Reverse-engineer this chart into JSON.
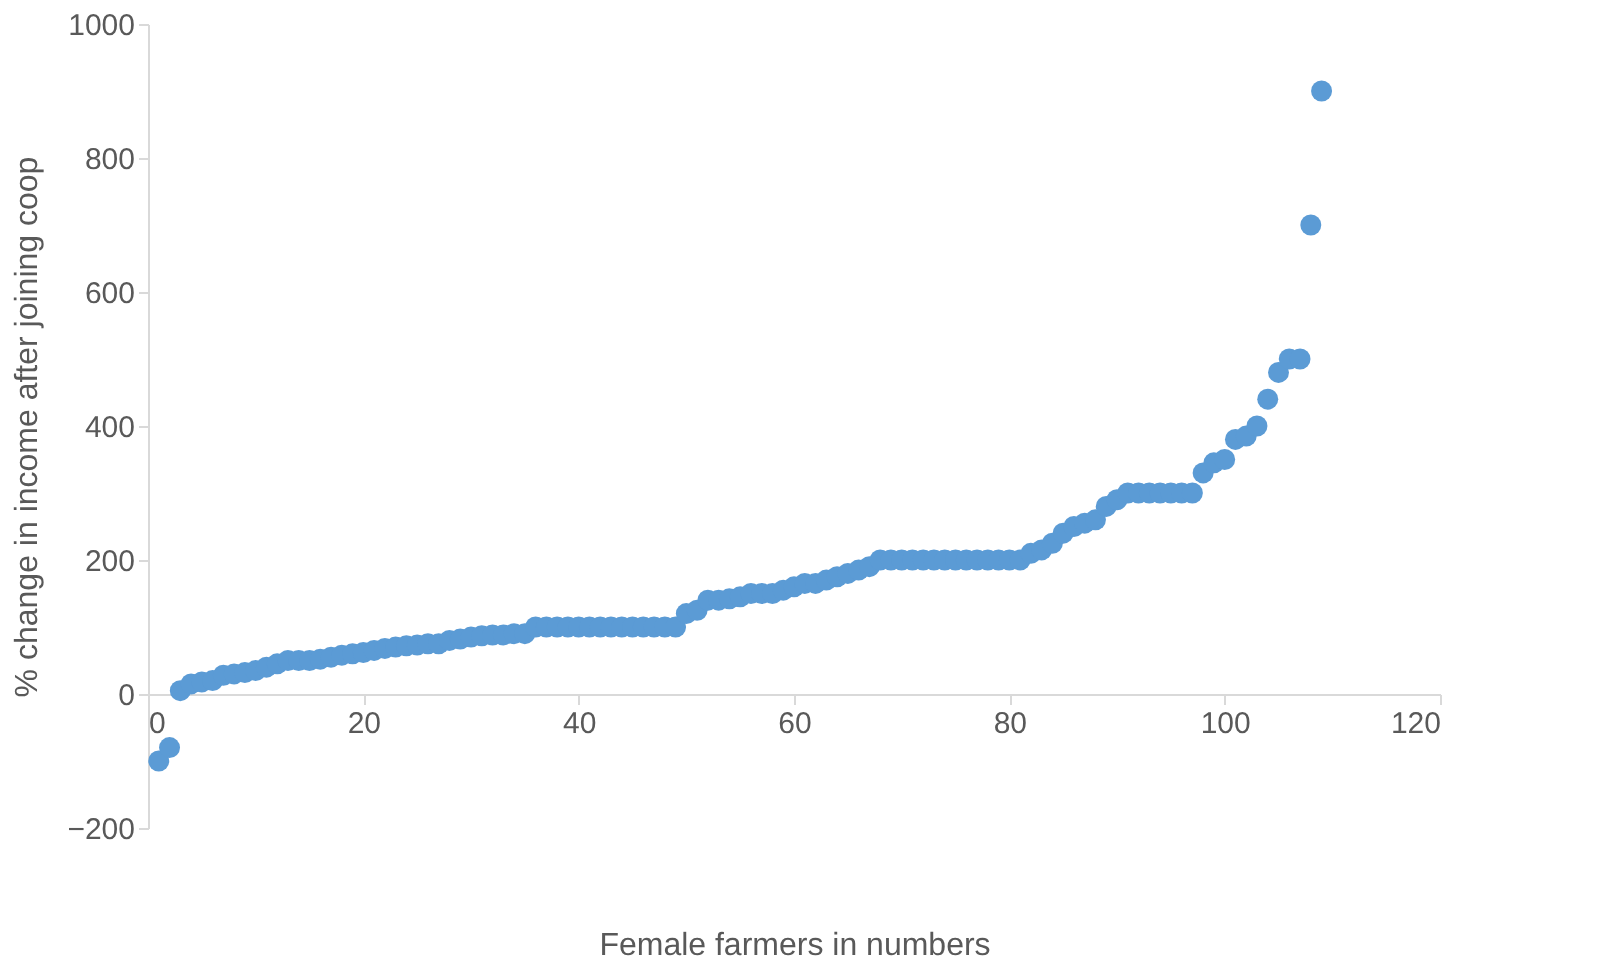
{
  "chart_data": {
    "type": "scatter",
    "xlabel": "Female farmers in numbers",
    "ylabel": "% change in income after joining coop",
    "x": [
      1,
      2,
      3,
      4,
      5,
      6,
      7,
      8,
      9,
      10,
      11,
      12,
      13,
      14,
      15,
      16,
      17,
      18,
      19,
      20,
      21,
      22,
      23,
      24,
      25,
      26,
      27,
      28,
      29,
      30,
      31,
      32,
      33,
      34,
      35,
      36,
      37,
      38,
      39,
      40,
      41,
      42,
      43,
      44,
      45,
      46,
      47,
      48,
      49,
      50,
      51,
      52,
      53,
      54,
      55,
      56,
      57,
      58,
      59,
      60,
      61,
      62,
      63,
      64,
      65,
      66,
      67,
      68,
      69,
      70,
      71,
      72,
      73,
      74,
      75,
      76,
      77,
      78,
      79,
      80,
      81,
      82,
      83,
      84,
      85,
      86,
      87,
      88,
      89,
      90,
      91,
      92,
      93,
      94,
      95,
      96,
      97,
      98,
      99,
      100,
      101,
      102,
      103,
      104,
      105,
      106,
      107,
      108,
      109
    ],
    "series": [
      {
        "color": "#5b9bd5",
        "values": [
          -100,
          -80,
          5,
          15,
          18,
          20,
          28,
          30,
          32,
          35,
          40,
          45,
          50,
          50,
          50,
          52,
          55,
          58,
          60,
          62,
          65,
          68,
          70,
          72,
          73,
          75,
          75,
          80,
          82,
          85,
          87,
          88,
          88,
          90,
          90,
          100,
          100,
          100,
          100,
          100,
          100,
          100,
          100,
          100,
          100,
          100,
          100,
          100,
          100,
          120,
          125,
          140,
          140,
          142,
          145,
          150,
          150,
          150,
          155,
          160,
          165,
          165,
          170,
          175,
          180,
          185,
          190,
          200,
          200,
          200,
          200,
          200,
          200,
          200,
          200,
          200,
          200,
          200,
          200,
          200,
          200,
          210,
          215,
          225,
          240,
          250,
          255,
          260,
          280,
          290,
          300,
          300,
          300,
          300,
          300,
          300,
          300,
          330,
          345,
          350,
          380,
          385,
          400,
          440,
          480,
          500,
          500,
          700,
          900
        ]
      }
    ],
    "xlim": [
      0,
      120
    ],
    "xticks": [
      0,
      20,
      40,
      60,
      80,
      100,
      120
    ],
    "ylim": [
      -200,
      1000
    ],
    "yticks": [
      -200,
      0,
      200,
      400,
      600,
      800,
      1000
    ],
    "grid": false,
    "marker": "circle"
  }
}
